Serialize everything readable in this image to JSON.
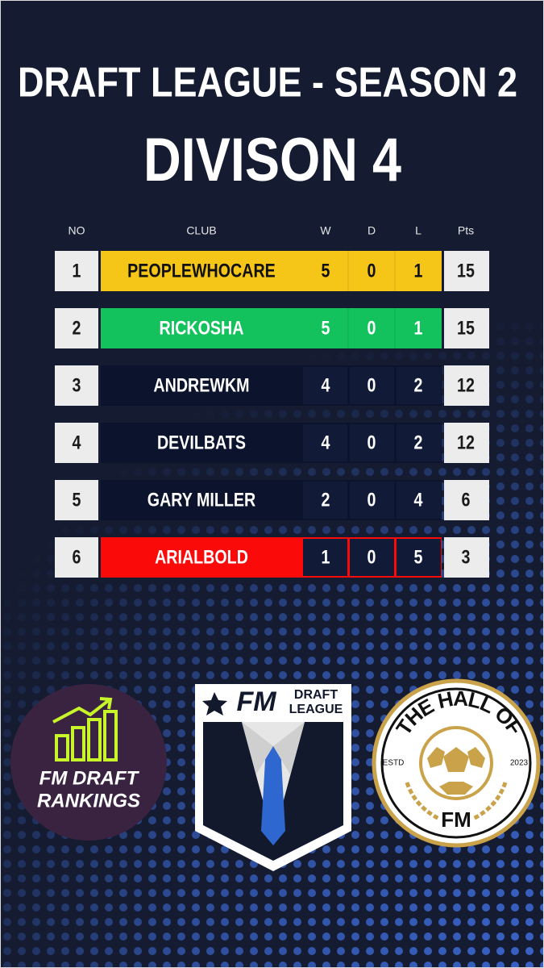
{
  "header": {
    "title": "DRAFT LEAGUE - SEASON 2",
    "subtitle": "DIVISON 4"
  },
  "table": {
    "columns": [
      "NO",
      "CLUB",
      "W",
      "D",
      "L",
      "Pts"
    ],
    "rows": [
      {
        "no": 1,
        "club": "PEOPLEWHOCARE",
        "w": 5,
        "d": 0,
        "l": 1,
        "pts": 15,
        "color": "#f5c518",
        "text_color": "#111111"
      },
      {
        "no": 2,
        "club": "RICKOSHA",
        "w": 5,
        "d": 0,
        "l": 1,
        "pts": 15,
        "color": "#13c25d",
        "text_color": "#ffffff"
      },
      {
        "no": 3,
        "club": "ANDREWKM",
        "w": 4,
        "d": 0,
        "l": 2,
        "pts": 12,
        "color": "#0c132c",
        "text_color": "#ffffff"
      },
      {
        "no": 4,
        "club": "DEVILBATS",
        "w": 4,
        "d": 0,
        "l": 2,
        "pts": 12,
        "color": "#0c132c",
        "text_color": "#ffffff"
      },
      {
        "no": 5,
        "club": "GARY MILLER",
        "w": 2,
        "d": 0,
        "l": 4,
        "pts": 6,
        "color": "#0c132c",
        "text_color": "#ffffff"
      },
      {
        "no": 6,
        "club": "ARIALBOLD",
        "w": 1,
        "d": 0,
        "l": 5,
        "pts": 3,
        "color": "#fb0a0a",
        "text_color": "#ffffff"
      }
    ]
  },
  "logos": {
    "rankings": {
      "line1": "FM DRAFT",
      "line2": "RANKINGS"
    },
    "league": {
      "mark": "FM",
      "line1": "DRAFT",
      "line2": "LEAGUE"
    },
    "hall": {
      "top": "THE HALL OF",
      "bottom": "FM",
      "left": "ESTD",
      "right": "2023"
    }
  }
}
